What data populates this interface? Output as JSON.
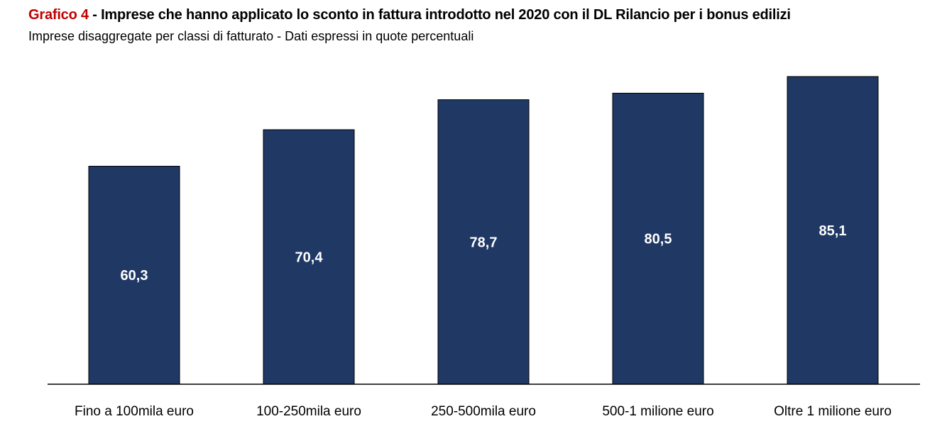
{
  "header": {
    "title_label": "Grafico 4",
    "title_text": " - Imprese che hanno applicato lo sconto in fattura introdotto nel 2020 con il DL Rilancio per i bonus edilizi",
    "subtitle": "Imprese disaggregate per classi di fatturato - Dati espressi in quote percentuali"
  },
  "colors": {
    "bar": "#203864",
    "title_label": "#c00000",
    "axis": "#000000"
  },
  "chart_data": {
    "type": "bar",
    "title": "Grafico 4 - Imprese che hanno applicato lo sconto in fattura introdotto nel 2020 con il DL Rilancio per i bonus edilizi",
    "subtitle": "Imprese disaggregate per classi di fatturato - Dati espressi in quote percentuali",
    "categories": [
      "Fino a 100mila euro",
      "100-250mila euro",
      "250-500mila euro",
      "500-1 milione euro",
      "Oltre 1 milione euro"
    ],
    "values": [
      60.3,
      70.4,
      78.7,
      80.5,
      85.1
    ],
    "value_labels": [
      "60,3",
      "70,4",
      "78,7",
      "80,5",
      "85,1"
    ],
    "ylim": [
      0,
      100
    ],
    "grid": false,
    "legend": "none"
  }
}
